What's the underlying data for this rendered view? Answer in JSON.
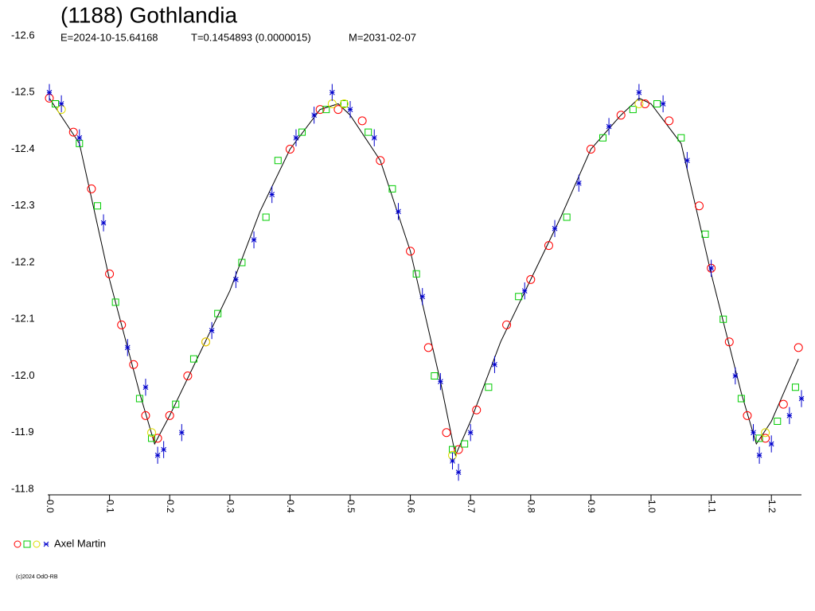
{
  "chart_data": {
    "type": "scatter",
    "title": "(1188) Gothlandia",
    "epoch": "E=2024-10-15.64168",
    "period": "T=0.1454893 (0.0000015)",
    "date": "M=2031-02-07",
    "observer": "Axel Martin",
    "footer": "(c)2024 OdO-RB",
    "xlim": [
      0,
      1.25
    ],
    "ylim": [
      -12.6,
      -11.8
    ],
    "xticks": [
      {
        "value": 0,
        "label": "0.0"
      },
      0.1,
      0.2,
      0.3,
      0.4,
      0.5,
      0.6,
      0.7,
      0.8,
      0.9,
      {
        "value": 1,
        "label": "1.0"
      },
      1.1,
      1.2
    ],
    "yticks": [
      -12.6,
      -12.5,
      -12.4,
      -12.3,
      -12.2,
      -12.1,
      {
        "value": -12,
        "label": "-12.0"
      },
      -11.9,
      -11.8
    ],
    "series": [
      {
        "color": "#ff0000",
        "marker": "circle",
        "x": [
          0.0,
          0.04,
          0.07,
          0.1,
          0.12,
          0.14,
          0.16,
          0.18,
          0.2,
          0.23,
          0.26,
          0.4,
          0.45,
          0.48,
          0.52,
          0.55,
          0.6,
          0.63,
          0.66,
          0.68,
          0.71,
          0.76,
          0.8,
          0.83,
          0.9,
          0.95,
          0.99,
          1.03,
          1.08,
          1.1,
          1.13,
          1.16,
          1.19,
          1.22,
          1.245
        ],
        "values": [
          -12.49,
          -12.43,
          -12.33,
          -12.18,
          -12.09,
          -12.02,
          -11.93,
          -11.89,
          -11.93,
          -12.0,
          -12.06,
          -12.4,
          -12.47,
          -12.47,
          -12.45,
          -12.38,
          -12.22,
          -12.05,
          -11.9,
          -11.87,
          -11.94,
          -12.09,
          -12.17,
          -12.23,
          -12.4,
          -12.46,
          -12.48,
          -12.45,
          -12.3,
          -12.19,
          -12.06,
          -11.93,
          -11.89,
          -11.95,
          -12.05
        ]
      },
      {
        "color": "#00cc00",
        "marker": "square",
        "x": [
          0.01,
          0.05,
          0.08,
          0.11,
          0.15,
          0.17,
          0.21,
          0.24,
          0.28,
          0.32,
          0.36,
          0.38,
          0.42,
          0.46,
          0.49,
          0.53,
          0.57,
          0.61,
          0.64,
          0.67,
          0.69,
          0.73,
          0.78,
          0.86,
          0.92,
          0.97,
          1.01,
          1.05,
          1.09,
          1.12,
          1.15,
          1.18,
          1.21,
          1.24
        ],
        "values": [
          -12.48,
          -12.41,
          -12.3,
          -12.13,
          -11.96,
          -11.89,
          -11.95,
          -12.03,
          -12.11,
          -12.2,
          -12.28,
          -12.38,
          -12.43,
          -12.47,
          -12.48,
          -12.43,
          -12.33,
          -12.18,
          -12.0,
          -11.87,
          -11.88,
          -11.98,
          -12.14,
          -12.28,
          -12.42,
          -12.47,
          -12.48,
          -12.42,
          -12.25,
          -12.1,
          -11.96,
          -11.89,
          -11.92,
          -11.98
        ]
      },
      {
        "color": "#dddd00",
        "marker": "circle",
        "x": [
          0.02,
          0.17,
          0.26,
          0.47,
          0.49,
          0.67,
          0.98,
          1.19
        ],
        "values": [
          -12.47,
          -11.9,
          -12.06,
          -12.48,
          -12.48,
          -11.86,
          -12.48,
          -11.9
        ]
      },
      {
        "color": "#0000cc",
        "marker": "star",
        "x": [
          0.0,
          0.02,
          0.05,
          0.09,
          0.13,
          0.16,
          0.18,
          0.19,
          0.22,
          0.27,
          0.31,
          0.34,
          0.37,
          0.41,
          0.44,
          0.47,
          0.5,
          0.54,
          0.58,
          0.62,
          0.65,
          0.67,
          0.68,
          0.7,
          0.74,
          0.79,
          0.84,
          0.88,
          0.93,
          0.98,
          1.02,
          1.06,
          1.1,
          1.14,
          1.17,
          1.18,
          1.2,
          1.23,
          1.25
        ],
        "values": [
          -12.5,
          -12.48,
          -12.42,
          -12.27,
          -12.05,
          -11.98,
          -11.86,
          -11.87,
          -11.9,
          -12.08,
          -12.17,
          -12.24,
          -12.32,
          -12.42,
          -12.46,
          -12.5,
          -12.47,
          -12.42,
          -12.29,
          -12.14,
          -11.99,
          -11.85,
          -11.83,
          -11.9,
          -12.02,
          -12.15,
          -12.26,
          -12.34,
          -12.44,
          -12.5,
          -12.48,
          -12.38,
          -12.19,
          -12.0,
          -11.9,
          -11.86,
          -11.88,
          -11.93,
          -11.96
        ],
        "errors": [
          0.015,
          0.015,
          0.015,
          0.015,
          0.015,
          0.015,
          0.015,
          0.015,
          0.015,
          0.015,
          0.015,
          0.015,
          0.015,
          0.015,
          0.015,
          0.015,
          0.015,
          0.015,
          0.015,
          0.015,
          0.015,
          0.015,
          0.015,
          0.015,
          0.015,
          0.015,
          0.015,
          0.015,
          0.015,
          0.015,
          0.015,
          0.015,
          0.015,
          0.015,
          0.015,
          0.015,
          0.015,
          0.015,
          0.015
        ]
      }
    ],
    "fit": {
      "color": "#000000",
      "x": [
        0.0,
        0.05,
        0.1,
        0.15,
        0.175,
        0.2,
        0.25,
        0.3,
        0.35,
        0.4,
        0.45,
        0.48,
        0.5,
        0.55,
        0.6,
        0.65,
        0.675,
        0.7,
        0.75,
        0.8,
        0.85,
        0.9,
        0.95,
        0.98,
        1.0,
        1.05,
        1.1,
        1.15,
        1.175,
        1.2,
        1.245
      ],
      "values": [
        -12.49,
        -12.41,
        -12.17,
        -11.97,
        -11.88,
        -11.93,
        -12.04,
        -12.15,
        -12.29,
        -12.4,
        -12.47,
        -12.48,
        -12.46,
        -12.38,
        -12.22,
        -11.99,
        -11.86,
        -11.92,
        -12.06,
        -12.17,
        -12.28,
        -12.4,
        -12.46,
        -12.49,
        -12.48,
        -12.41,
        -12.18,
        -11.97,
        -11.88,
        -11.92,
        -12.03
      ]
    }
  }
}
